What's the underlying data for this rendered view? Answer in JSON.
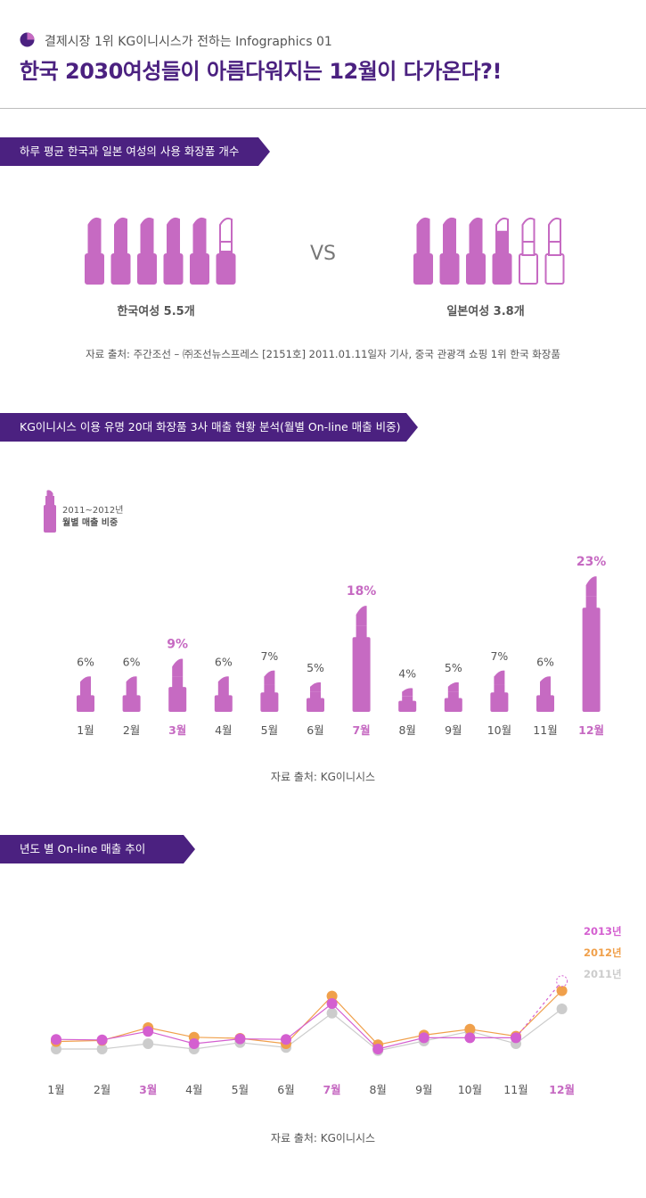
{
  "header": {
    "subtitle": "결제시장 1위 KG이니시스가 전하는 Infographics 01",
    "title": "한국 2030여성들이 아름다워지는 12월이 다가온다?!"
  },
  "colors": {
    "brand": "#4b2180",
    "lipstick": "#c66ac2",
    "y2011": "#cccccc",
    "y2012": "#f0a04b",
    "y2013": "#d45fd0"
  },
  "section1": {
    "banner": "하루 평균 한국과 일본 여성의 사용 화장품 개수",
    "vs": "VS",
    "korea": {
      "label": "한국여성 5.5개",
      "count": 5.5
    },
    "japan": {
      "label": "일본여성 3.8개",
      "count": 3.8
    },
    "source": "자료 출처: 주간조선 – ㈜조선뉴스프레스 [2151호] 2011.01.11일자 기사, 중국 관광객 쇼핑 1위 한국 화장품"
  },
  "chart_data": [
    {
      "type": "bar",
      "title": "KG이니시스 이용 유명 20대 화장품 3사 매출 현황 분석(월별 On-line 매출 비중)",
      "legend": [
        "2011~2012년",
        "월별 매출 비중"
      ],
      "categories": [
        "1월",
        "2월",
        "3월",
        "4월",
        "5월",
        "6월",
        "7월",
        "8월",
        "9월",
        "10월",
        "11월",
        "12월"
      ],
      "values": [
        6,
        6,
        9,
        6,
        7,
        5,
        18,
        4,
        5,
        7,
        6,
        23
      ],
      "value_labels": [
        "6%",
        "6%",
        "9%",
        "6%",
        "7%",
        "5%",
        "18%",
        "4%",
        "5%",
        "7%",
        "6%",
        "23%"
      ],
      "highlight": [
        "3월",
        "7월",
        "12월"
      ],
      "source": "자료 출처: KG이니시스"
    },
    {
      "type": "line",
      "title": "년도 별 On-line 매출 추이",
      "categories": [
        "1월",
        "2월",
        "3월",
        "4월",
        "5월",
        "6월",
        "7월",
        "8월",
        "9월",
        "10월",
        "11월",
        "12월"
      ],
      "highlight": [
        "3월",
        "7월",
        "12월"
      ],
      "series": [
        {
          "name": "2011년",
          "values": [
            4.0,
            4.0,
            5.0,
            4.0,
            5.2,
            4.3,
            10.7,
            3.7,
            5.5,
            7.3,
            5.0,
            11.5
          ]
        },
        {
          "name": "2012년",
          "values": [
            5.4,
            5.6,
            8.0,
            6.2,
            6.0,
            5.0,
            13.9,
            4.8,
            6.6,
            7.7,
            6.4,
            14.9
          ]
        },
        {
          "name": "2013년",
          "values": [
            5.8,
            5.7,
            7.3,
            5.0,
            5.9,
            5.8,
            12.5,
            4.0,
            6.1,
            6.1,
            6.1,
            16.7
          ]
        }
      ],
      "source": "자료 출처: KG이니시스"
    }
  ]
}
